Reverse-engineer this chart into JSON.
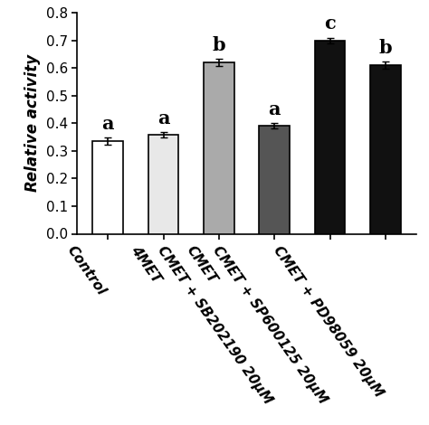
{
  "categories": [
    "Control",
    "4MET",
    "CMET",
    "CMET + SB202190 20μM",
    "CMET + SP600125 20μM",
    "CMET + PD98059 20μM"
  ],
  "values": [
    0.335,
    0.358,
    0.62,
    0.39,
    0.7,
    0.61
  ],
  "errors": [
    0.012,
    0.01,
    0.012,
    0.01,
    0.01,
    0.013
  ],
  "bar_colors": [
    "#ffffff",
    "#e8e8e8",
    "#aaaaaa",
    "#555555",
    "#111111",
    "#111111"
  ],
  "bar_edge_colors": [
    "#000000",
    "#000000",
    "#000000",
    "#000000",
    "#000000",
    "#000000"
  ],
  "significance_labels": [
    "a",
    "a",
    "b",
    "a",
    "c",
    "b"
  ],
  "ylabel": "Relative activity",
  "ylim": [
    0,
    0.8
  ],
  "yticks": [
    0,
    0.1,
    0.2,
    0.3,
    0.4,
    0.5,
    0.6,
    0.7,
    0.8
  ],
  "ylabel_fontsize": 12,
  "tick_fontsize": 11,
  "sig_fontsize": 15,
  "bar_width": 0.55,
  "rotation": -55
}
